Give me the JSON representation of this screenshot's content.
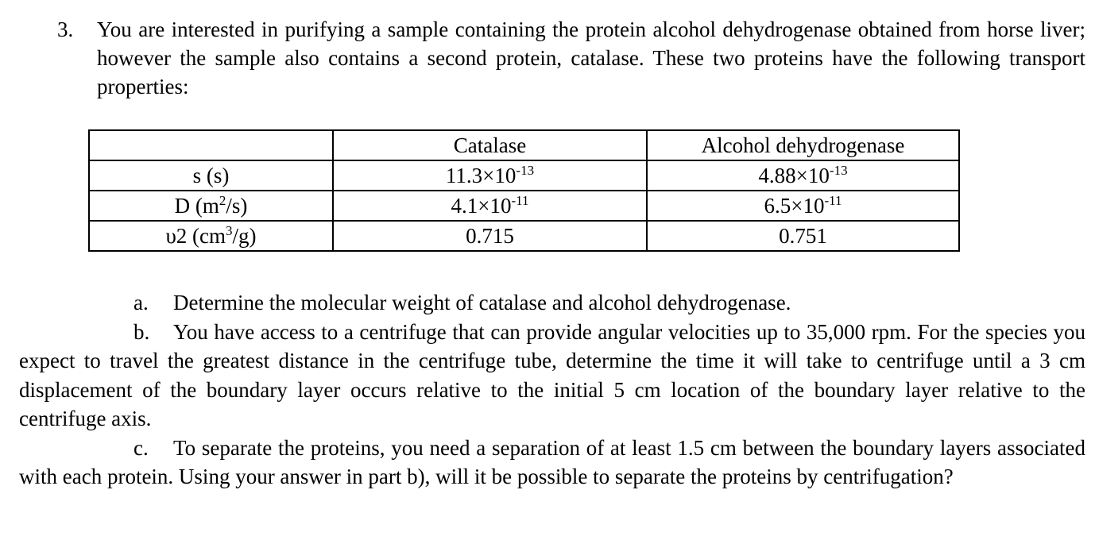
{
  "question": {
    "number": "3.",
    "text": "You are interested in purifying a sample containing the protein alcohol dehydrogenase obtained from horse liver; however the sample also contains a second protein, catalase. These two proteins have the following transport properties:"
  },
  "table": {
    "headers": [
      "",
      "Catalase",
      "Alcohol dehydrogenase"
    ],
    "rows": [
      {
        "label": {
          "pre": "s (s)",
          "sup": "",
          "post": ""
        },
        "catalase": {
          "pre": "11.3×10",
          "sup": "-13"
        },
        "adh": {
          "pre": "4.88×10",
          "sup": "-13"
        }
      },
      {
        "label": {
          "pre": "D (m",
          "sup": "2",
          "post": "/s)"
        },
        "catalase": {
          "pre": "4.1×10",
          "sup": "-11"
        },
        "adh": {
          "pre": "6.5×10",
          "sup": "-11"
        }
      },
      {
        "label": {
          "pre": "υ2 (cm",
          "sup": "3",
          "post": "/g)"
        },
        "catalase": {
          "pre": "0.715",
          "sup": ""
        },
        "adh": {
          "pre": "0.751",
          "sup": ""
        }
      }
    ]
  },
  "parts": [
    {
      "label": "a.",
      "text": "Determine the molecular weight of catalase and alcohol dehydrogenase."
    },
    {
      "label": "b.",
      "text": "You have access to a centrifuge that can provide angular velocities up to 35,000 rpm. For the species you expect to travel the greatest distance in the centrifuge tube, determine the time it will take to centrifuge until a 3 cm displacement of the boundary layer occurs relative to the initial 5 cm location of the boundary layer relative to the centrifuge axis."
    },
    {
      "label": "c.",
      "text": "To separate the proteins, you need a separation of at least 1.5 cm between the boundary layers associated with each protein. Using your answer in part b), will it be possible to separate the proteins by centrifugation?"
    }
  ]
}
